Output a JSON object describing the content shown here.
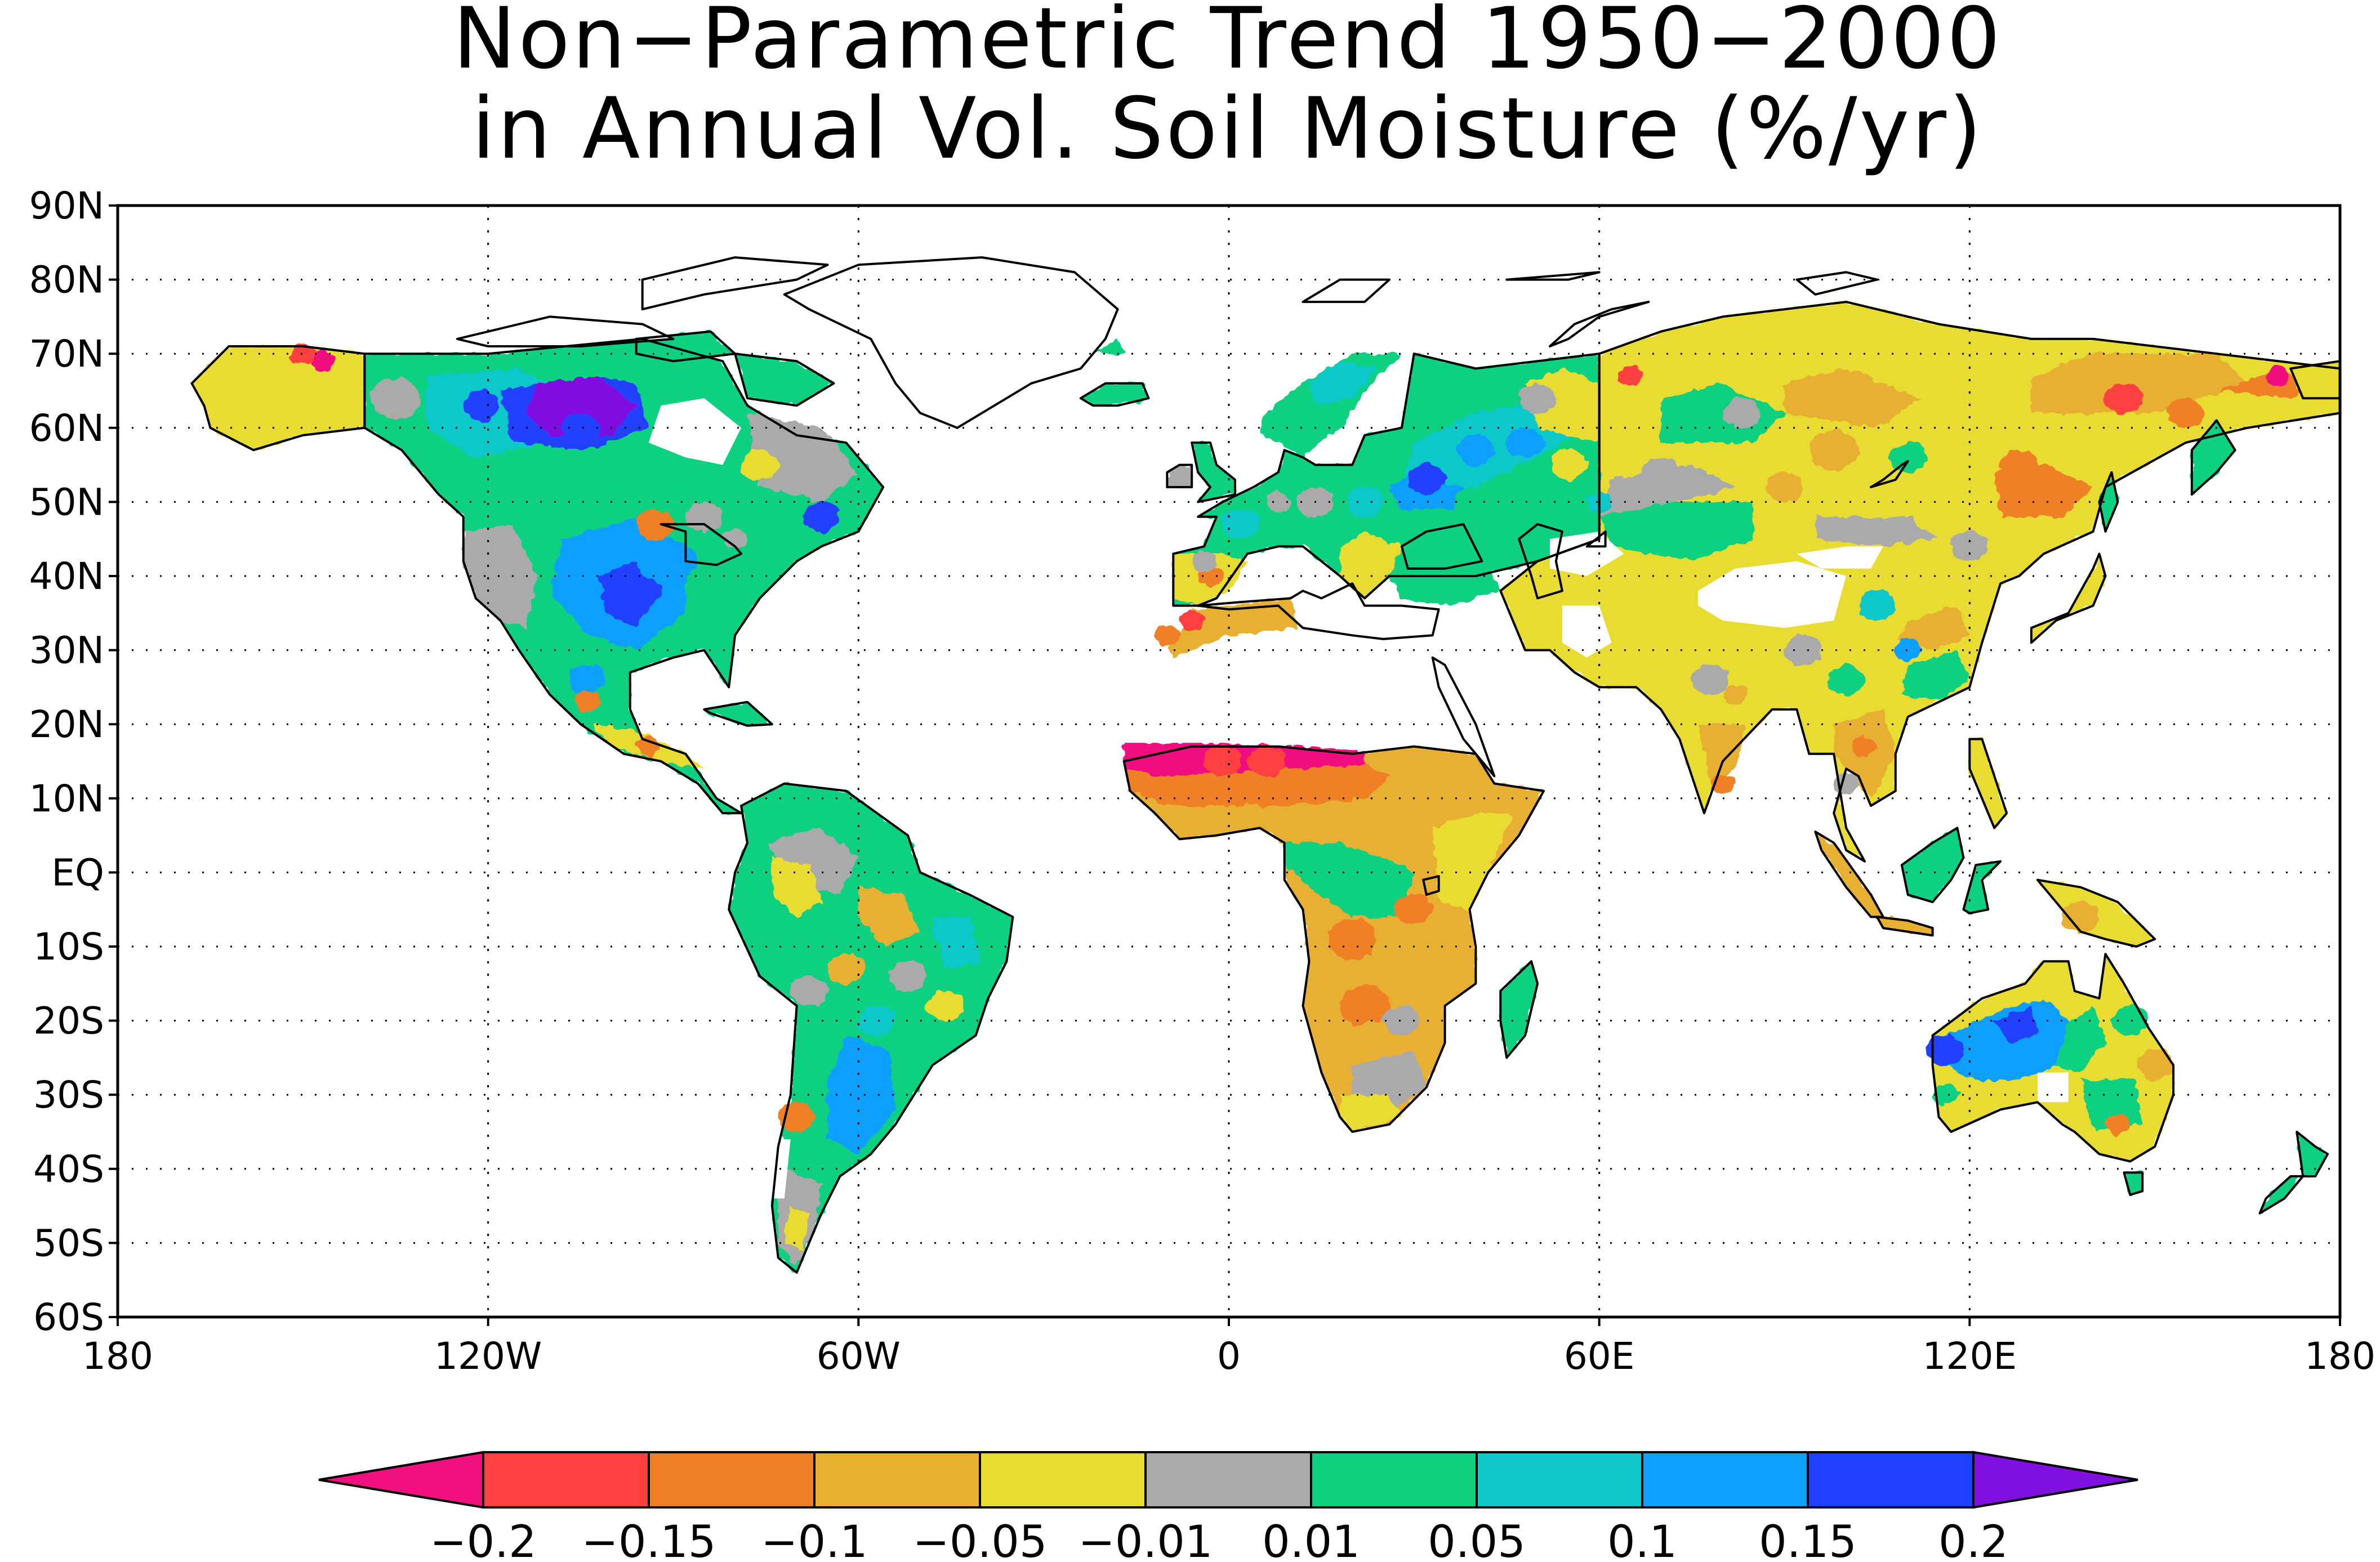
{
  "chart_data": {
    "type": "heatmap",
    "title_line1": "Non−Parametric Trend 1950−2000",
    "title_line2": "in Annual Vol. Soil Moisture (%/yr)",
    "y_ticks": [
      "90N",
      "80N",
      "70N",
      "60N",
      "50N",
      "40N",
      "30N",
      "20N",
      "10N",
      "EQ",
      "10S",
      "20S",
      "30S",
      "40S",
      "50S",
      "60S"
    ],
    "y_tick_values": [
      90,
      80,
      70,
      60,
      50,
      40,
      30,
      20,
      10,
      0,
      -10,
      -20,
      -30,
      -40,
      -50,
      -60
    ],
    "x_ticks": [
      "180",
      "120W",
      "60W",
      "0",
      "60E",
      "120E",
      "180"
    ],
    "x_tick_values": [
      -180,
      -120,
      -60,
      0,
      60,
      120,
      180
    ],
    "lat_range": [
      -60,
      90
    ],
    "lon_range": [
      -180,
      180
    ],
    "grid": "dotted",
    "colorbar": {
      "labels": [
        "−0.2",
        "−0.15",
        "−0.1",
        "−0.05",
        "−0.01",
        "0.01",
        "0.05",
        "0.1",
        "0.15",
        "0.2"
      ],
      "colors": [
        "#f0107f",
        "#ff4040",
        "#f08028",
        "#e8b030",
        "#e8dc30",
        "#aaaaaa",
        "#10d080",
        "#10c8c8",
        "#10a0ff",
        "#2040ff",
        "#8010e0"
      ],
      "extend": "both"
    },
    "regions": [
      {
        "region": "Alaska",
        "trend": "-0.05 to -0.01",
        "color_index": 4
      },
      {
        "region": "Northwest Canada",
        "trend": "0.05 to 0.15",
        "color_index": 7
      },
      {
        "region": "Hudson Bay area",
        "trend": "> 0.2",
        "color_index": 10
      },
      {
        "region": "Central United States",
        "trend": "0.1 to 0.15",
        "color_index": 8
      },
      {
        "region": "Eastern North America",
        "trend": "0.01 to 0.05",
        "color_index": 6
      },
      {
        "region": "Mexico",
        "trend": "0.01 to 0.05",
        "color_index": 6
      },
      {
        "region": "Amazon",
        "trend": "0.01 to 0.05",
        "color_index": 6
      },
      {
        "region": "Southern South America",
        "trend": "0.05 to 0.1",
        "color_index": 7
      },
      {
        "region": "Europe",
        "trend": "0.01 to 0.05",
        "color_index": 6
      },
      {
        "region": "North Africa coast",
        "trend": "-0.1 to -0.05",
        "color_index": 3
      },
      {
        "region": "Sahel",
        "trend": "< -0.2",
        "color_index": 0
      },
      {
        "region": "West Africa",
        "trend": "-0.15 to -0.1",
        "color_index": 2
      },
      {
        "region": "Central Africa",
        "trend": "-0.1 to -0.05",
        "color_index": 3
      },
      {
        "region": "Southern Africa",
        "trend": "-0.05 to -0.01",
        "color_index": 4
      },
      {
        "region": "Madagascar",
        "trend": "0.01 to 0.05",
        "color_index": 6
      },
      {
        "region": "Western Russia",
        "trend": "0.05 to 0.1",
        "color_index": 7
      },
      {
        "region": "Siberia",
        "trend": "-0.05 to -0.01",
        "color_index": 4
      },
      {
        "region": "Northeast Siberia",
        "trend": "-0.15 to -0.1",
        "color_index": 2
      },
      {
        "region": "Central Asia",
        "trend": "-0.05 to -0.01",
        "color_index": 4
      },
      {
        "region": "China",
        "trend": "-0.05 to -0.01",
        "color_index": 4
      },
      {
        "region": "India",
        "trend": "-0.05 to -0.01",
        "color_index": 4
      },
      {
        "region": "Southeast Asia",
        "trend": "-0.1 to -0.05",
        "color_index": 3
      },
      {
        "region": "Indonesia",
        "trend": "-0.05 to -0.01",
        "color_index": 4
      },
      {
        "region": "Australia west and central",
        "trend": "0.1 to 0.15",
        "color_index": 8
      },
      {
        "region": "Australia east",
        "trend": "-0.05 to -0.01",
        "color_index": 4
      },
      {
        "region": "New Zealand",
        "trend": "0.01 to 0.05",
        "color_index": 6
      }
    ]
  }
}
